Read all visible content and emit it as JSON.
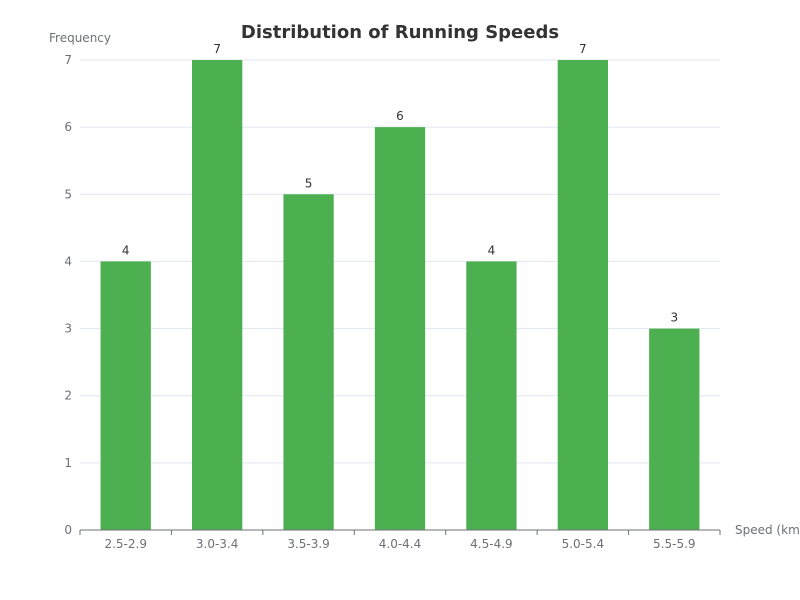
{
  "chart_data": {
    "type": "bar",
    "title": "Distribution of Running Speeds",
    "xlabel": "Speed (km/h)",
    "ylabel": "Frequency",
    "categories": [
      "2.5-2.9",
      "3.0-3.4",
      "3.5-3.9",
      "4.0-4.4",
      "4.5-4.9",
      "5.0-5.4",
      "5.5-5.9"
    ],
    "values": [
      4,
      7,
      5,
      6,
      4,
      7,
      3
    ],
    "ylim": [
      0,
      7
    ],
    "yticks": [
      0,
      1,
      2,
      3,
      4,
      5,
      6,
      7
    ],
    "grid": true,
    "legend": "none",
    "show_data_labels": true,
    "bar_color": "#4caf50",
    "grid_color": "#e0e6f1",
    "axis_color": "#6e7079",
    "text_color": "#333333"
  }
}
